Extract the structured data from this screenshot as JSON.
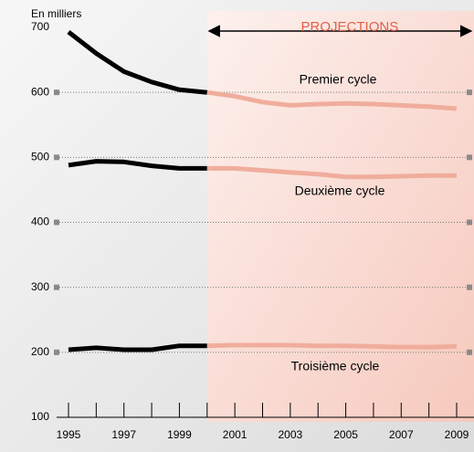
{
  "chart_data": {
    "type": "line",
    "unit_label": "En milliers",
    "projection_label": "PROJECTIONS",
    "projection_from": 2000,
    "history_color": "#000000",
    "projection_color": "#f0ad9c",
    "x": [
      1995,
      1996,
      1997,
      1998,
      1999,
      2000,
      2001,
      2002,
      2003,
      2004,
      2005,
      2006,
      2007,
      2008,
      2009
    ],
    "xlim": [
      1995,
      2009
    ],
    "xticks": [
      1995,
      1997,
      1999,
      2001,
      2003,
      2005,
      2007,
      2009
    ],
    "ylim": [
      100,
      700
    ],
    "yticks": [
      100,
      200,
      300,
      400,
      500,
      600,
      700
    ],
    "grid": true,
    "series": [
      {
        "name": "Premier cycle",
        "values": [
          693,
          660,
          632,
          616,
          604,
          600,
          594,
          585,
          580,
          582,
          583,
          582,
          580,
          578,
          575
        ]
      },
      {
        "name": "Deuxième cycle",
        "values": [
          488,
          494,
          493,
          487,
          483,
          483,
          483,
          480,
          477,
          474,
          470,
          470,
          471,
          472,
          472
        ]
      },
      {
        "name": "Troisième cycle",
        "values": [
          204,
          207,
          204,
          204,
          210,
          210,
          211,
          211,
          211,
          210,
          210,
          209,
          208,
          208,
          209
        ]
      }
    ]
  }
}
